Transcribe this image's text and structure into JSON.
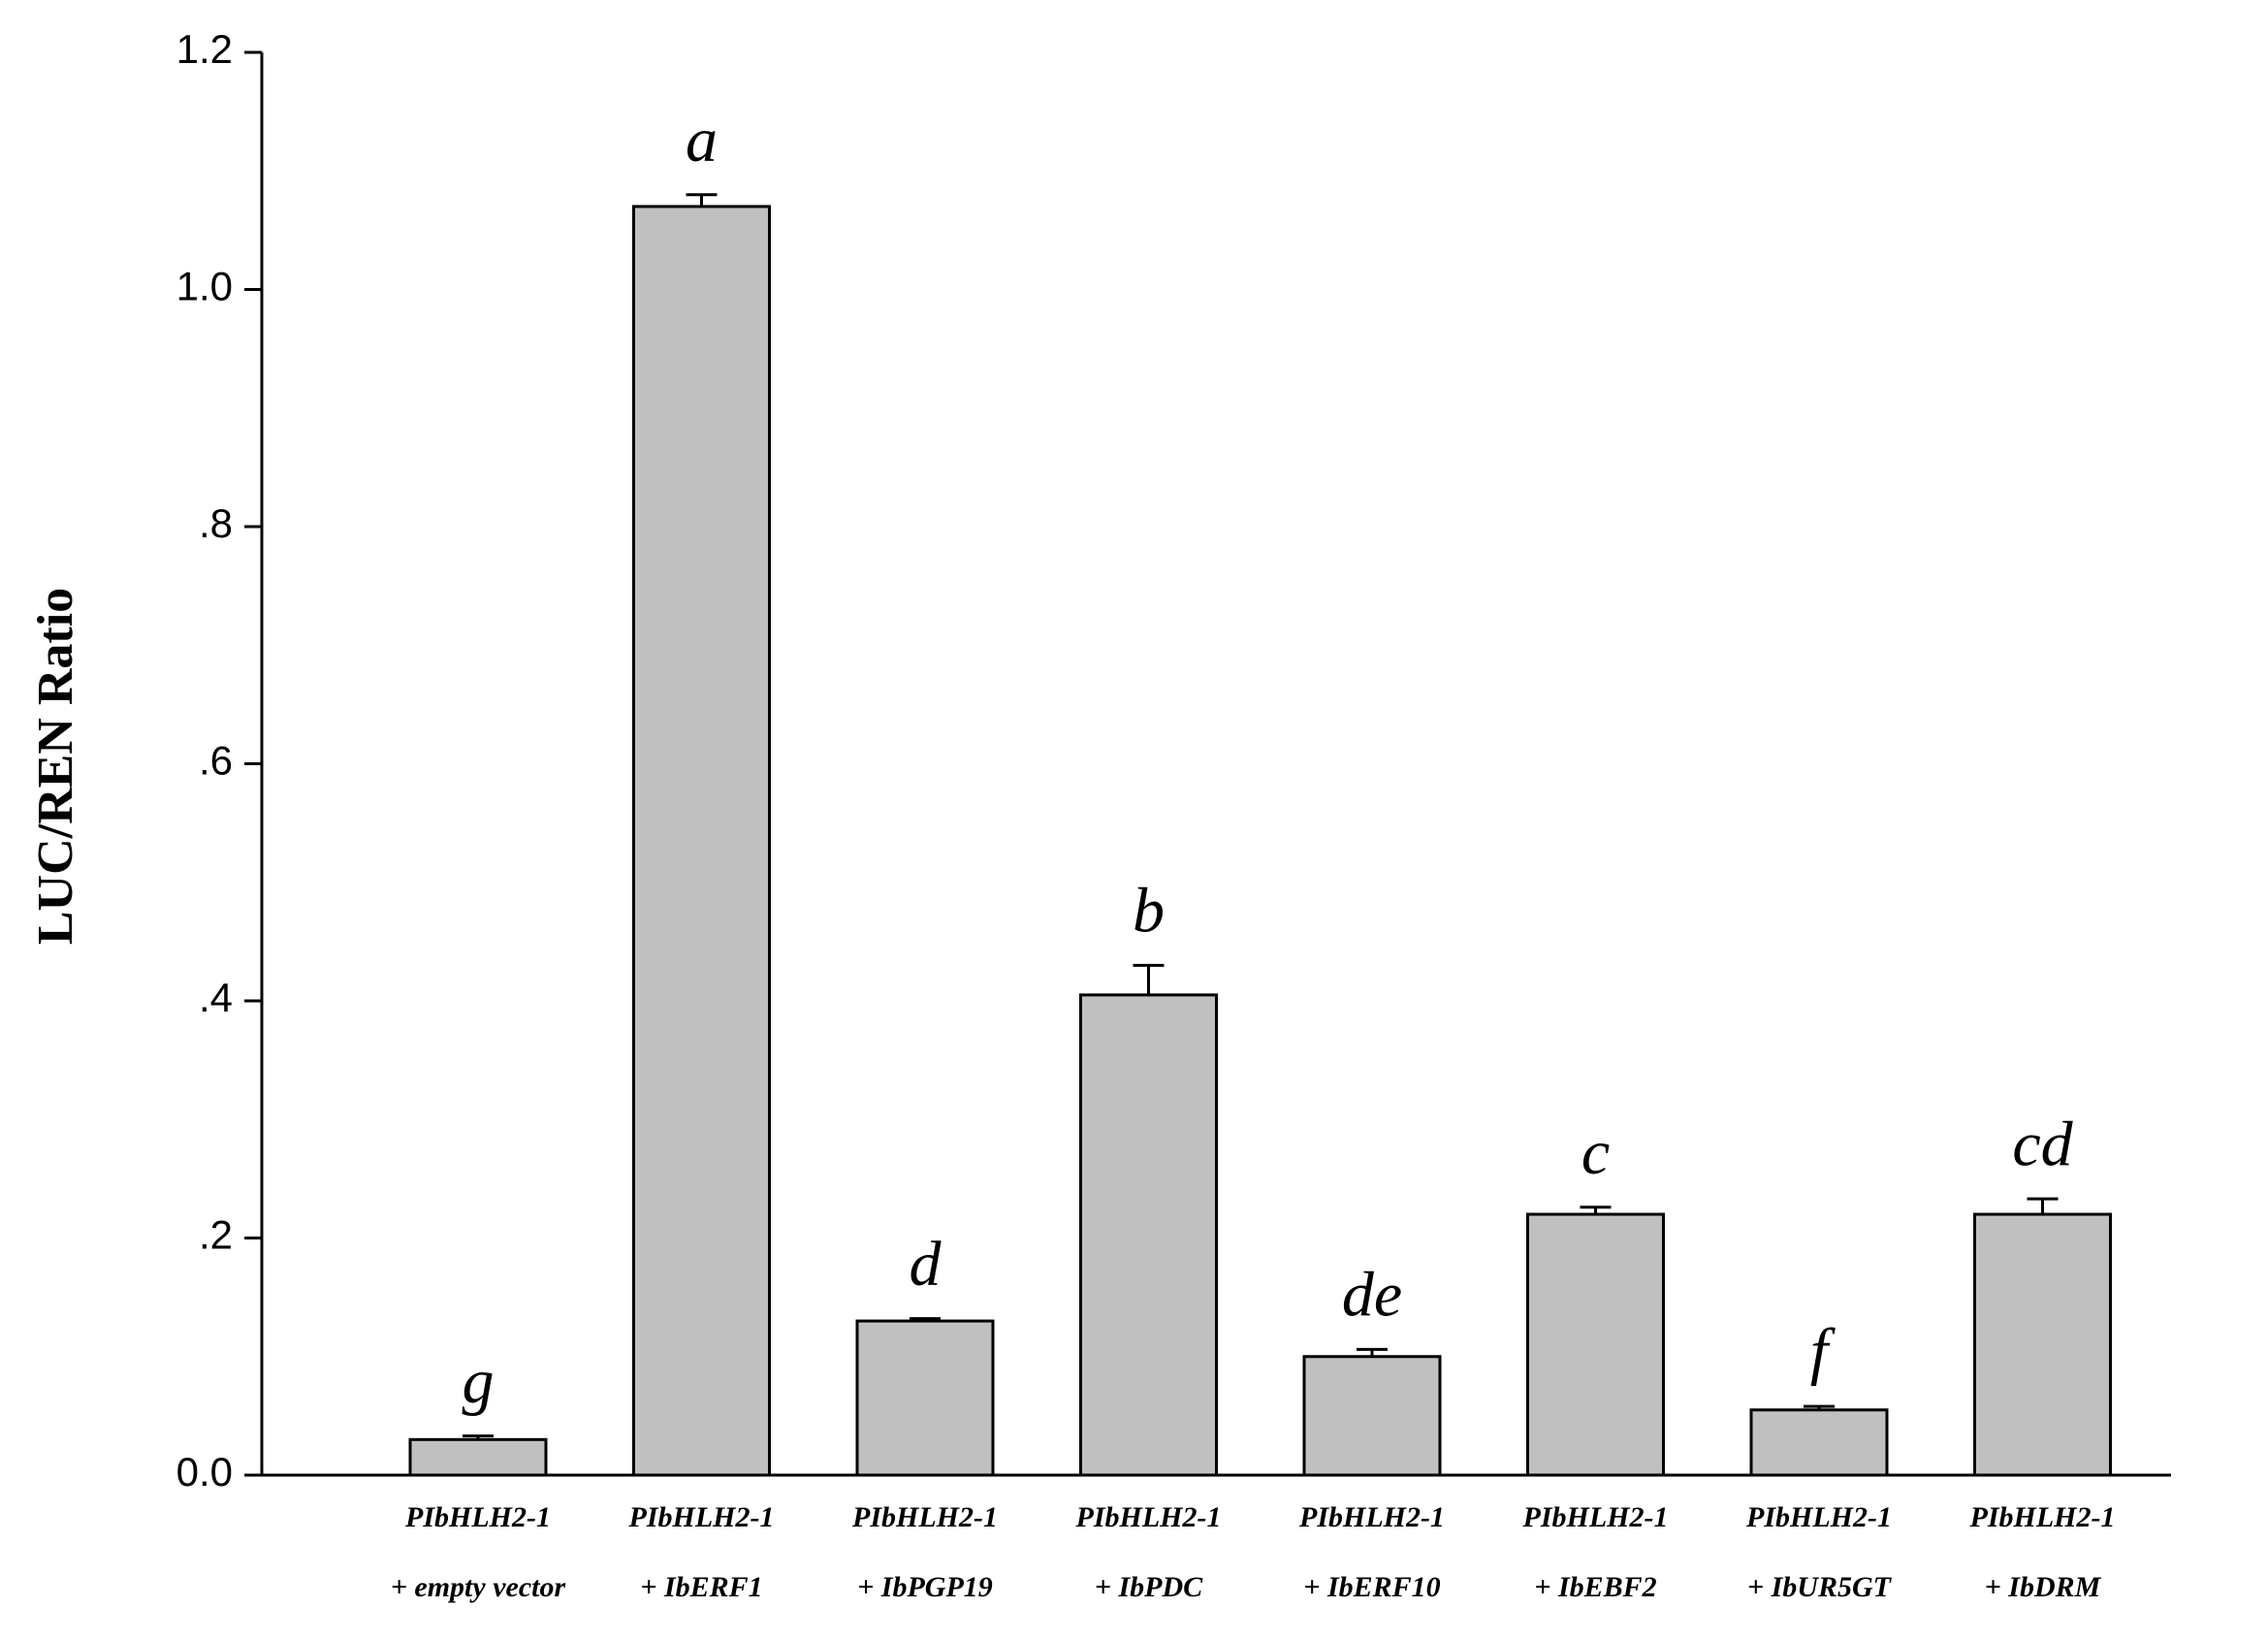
{
  "chart_data": {
    "type": "bar",
    "y_label": "LUC/REN Ratio",
    "categories": [
      [
        "PIbHLH2-1",
        "+ empty vector"
      ],
      [
        "PIbHLH2-1",
        "+ IbERF1"
      ],
      [
        "PIbHLH2-1",
        "+ IbPGP19"
      ],
      [
        "PIbHLH2-1",
        "+ IbPDC"
      ],
      [
        "PIbHLH2-1",
        "+ IbERF10"
      ],
      [
        "PIbHLH2-1",
        "+ IbEBF2"
      ],
      [
        "PIbHLH2-1",
        "+ IbUR5GT"
      ],
      [
        "PIbHLH2-1",
        "+ IbDRM"
      ]
    ],
    "values": [
      0.03,
      1.07,
      0.13,
      0.405,
      0.1,
      0.22,
      0.055,
      0.22
    ],
    "errors": [
      0.003,
      0.01,
      0.002,
      0.025,
      0.006,
      0.006,
      0.003,
      0.013
    ],
    "annotations": [
      "g",
      "a",
      "d",
      "b",
      "de",
      "c",
      "f",
      "cd"
    ],
    "color": "#c0c0c0",
    "ylim": [
      0,
      1.2
    ],
    "yticks": [
      {
        "value": 0,
        "label": "0.0"
      },
      {
        "value": 0.2,
        "label": ".2"
      },
      {
        "value": 0.4,
        "label": ".4"
      },
      {
        "value": 0.6,
        "label": ".6"
      },
      {
        "value": 0.8,
        "label": ".8"
      },
      {
        "value": 1.0,
        "label": "1.0"
      },
      {
        "value": 1.2,
        "label": "1.2"
      }
    ]
  }
}
